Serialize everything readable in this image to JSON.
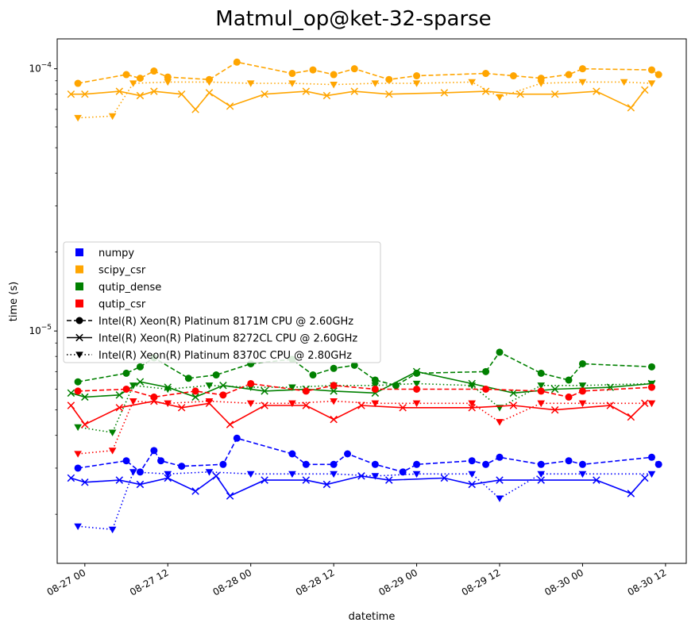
{
  "chart_data": {
    "type": "line",
    "title": "Matmul_op@ket-32-sparse",
    "xlabel": "datetime",
    "ylabel": "time (s)",
    "yscale": "log",
    "ylim": [
      1.3e-06,
      0.00013
    ],
    "xlim": [
      "2022-08-26 20:00",
      "2022-08-30 15:00"
    ],
    "x_ticks": [
      {
        "value": "2022-08-27 00:00",
        "label": "08-27 00"
      },
      {
        "value": "2022-08-27 12:00",
        "label": "08-27 12"
      },
      {
        "value": "2022-08-28 00:00",
        "label": "08-28 00"
      },
      {
        "value": "2022-08-28 12:00",
        "label": "08-28 12"
      },
      {
        "value": "2022-08-29 00:00",
        "label": "08-29 00"
      },
      {
        "value": "2022-08-29 12:00",
        "label": "08-29 12"
      },
      {
        "value": "2022-08-30 00:00",
        "label": "08-30 00"
      },
      {
        "value": "2022-08-30 12:00",
        "label": "08-30 12"
      }
    ],
    "y_ticks": [
      {
        "value": 1e-05,
        "label": "10^-5",
        "base": "10",
        "exp": "−5"
      },
      {
        "value": 0.0001,
        "label": "10^-4",
        "base": "10",
        "exp": "−4"
      }
    ],
    "legend": {
      "placement": "center-left",
      "libraries": [
        {
          "name": "numpy",
          "color": "#0000ff"
        },
        {
          "name": "scipy_csr",
          "color": "#ffa500"
        },
        {
          "name": "qutip_dense",
          "color": "#008000"
        },
        {
          "name": "qutip_csr",
          "color": "#ff0000"
        }
      ],
      "cpus": [
        {
          "name": "Intel(R) Xeon(R) Platinum 8171M CPU @ 2.60GHz",
          "linestyle": "dashed",
          "marker": "circle"
        },
        {
          "name": "Intel(R) Xeon(R) Platinum 8272CL CPU @ 2.60GHz",
          "linestyle": "solid",
          "marker": "x"
        },
        {
          "name": "Intel(R) Xeon(R) Platinum 8370C CPU @ 2.80GHz",
          "linestyle": "dotted",
          "marker": "triangle-down"
        }
      ]
    },
    "series": [
      {
        "library": "scipy_csr",
        "cpu": 0,
        "points": [
          [
            "2022-08-26 23:00",
            8.8e-05
          ],
          [
            "2022-08-27 06:00",
            9.5e-05
          ],
          [
            "2022-08-27 08:00",
            9.2e-05
          ],
          [
            "2022-08-27 10:00",
            9.8e-05
          ],
          [
            "2022-08-27 12:00",
            9.3e-05
          ],
          [
            "2022-08-27 18:00",
            9.1e-05
          ],
          [
            "2022-08-27 22:00",
            0.000106
          ],
          [
            "2022-08-28 06:00",
            9.6e-05
          ],
          [
            "2022-08-28 09:00",
            9.9e-05
          ],
          [
            "2022-08-28 12:00",
            9.5e-05
          ],
          [
            "2022-08-28 15:00",
            0.0001
          ],
          [
            "2022-08-28 20:00",
            9.1e-05
          ],
          [
            "2022-08-29 00:00",
            9.4e-05
          ],
          [
            "2022-08-29 10:00",
            9.6e-05
          ],
          [
            "2022-08-29 14:00",
            9.4e-05
          ],
          [
            "2022-08-29 18:00",
            9.2e-05
          ],
          [
            "2022-08-29 22:00",
            9.5e-05
          ],
          [
            "2022-08-30 00:00",
            0.0001
          ],
          [
            "2022-08-30 10:00",
            9.9e-05
          ],
          [
            "2022-08-30 11:00",
            9.5e-05
          ]
        ]
      },
      {
        "library": "scipy_csr",
        "cpu": 1,
        "points": [
          [
            "2022-08-26 22:00",
            8e-05
          ],
          [
            "2022-08-27 00:00",
            8e-05
          ],
          [
            "2022-08-27 05:00",
            8.2e-05
          ],
          [
            "2022-08-27 08:00",
            7.9e-05
          ],
          [
            "2022-08-27 10:00",
            8.2e-05
          ],
          [
            "2022-08-27 14:00",
            8e-05
          ],
          [
            "2022-08-27 16:00",
            7e-05
          ],
          [
            "2022-08-27 18:00",
            8.1e-05
          ],
          [
            "2022-08-27 21:00",
            7.2e-05
          ],
          [
            "2022-08-28 02:00",
            8e-05
          ],
          [
            "2022-08-28 08:00",
            8.2e-05
          ],
          [
            "2022-08-28 11:00",
            7.9e-05
          ],
          [
            "2022-08-28 15:00",
            8.2e-05
          ],
          [
            "2022-08-28 20:00",
            8e-05
          ],
          [
            "2022-08-29 04:00",
            8.1e-05
          ],
          [
            "2022-08-29 10:00",
            8.2e-05
          ],
          [
            "2022-08-29 15:00",
            8e-05
          ],
          [
            "2022-08-29 20:00",
            8e-05
          ],
          [
            "2022-08-30 02:00",
            8.2e-05
          ],
          [
            "2022-08-30 07:00",
            7.1e-05
          ],
          [
            "2022-08-30 09:00",
            8.3e-05
          ]
        ]
      },
      {
        "library": "scipy_csr",
        "cpu": 2,
        "points": [
          [
            "2022-08-26 23:00",
            6.5e-05
          ],
          [
            "2022-08-27 04:00",
            6.6e-05
          ],
          [
            "2022-08-27 07:00",
            8.8e-05
          ],
          [
            "2022-08-27 12:00",
            8.9e-05
          ],
          [
            "2022-08-27 18:00",
            8.9e-05
          ],
          [
            "2022-08-28 00:00",
            8.8e-05
          ],
          [
            "2022-08-28 06:00",
            8.8e-05
          ],
          [
            "2022-08-28 12:00",
            8.7e-05
          ],
          [
            "2022-08-28 18:00",
            8.8e-05
          ],
          [
            "2022-08-29 00:00",
            8.8e-05
          ],
          [
            "2022-08-29 08:00",
            8.9e-05
          ],
          [
            "2022-08-29 12:00",
            7.8e-05
          ],
          [
            "2022-08-29 18:00",
            8.8e-05
          ],
          [
            "2022-08-30 00:00",
            8.9e-05
          ],
          [
            "2022-08-30 06:00",
            8.9e-05
          ],
          [
            "2022-08-30 10:00",
            8.8e-05
          ]
        ]
      },
      {
        "library": "qutip_dense",
        "cpu": 0,
        "points": [
          [
            "2022-08-26 23:00",
            6.4e-06
          ],
          [
            "2022-08-27 06:00",
            6.9e-06
          ],
          [
            "2022-08-27 08:00",
            7.3e-06
          ],
          [
            "2022-08-27 10:00",
            7.9e-06
          ],
          [
            "2022-08-27 15:00",
            6.6e-06
          ],
          [
            "2022-08-27 19:00",
            6.8e-06
          ],
          [
            "2022-08-28 00:00",
            7.5e-06
          ],
          [
            "2022-08-28 06:00",
            7.8e-06
          ],
          [
            "2022-08-28 09:00",
            6.8e-06
          ],
          [
            "2022-08-28 12:00",
            7.2e-06
          ],
          [
            "2022-08-28 15:00",
            7.4e-06
          ],
          [
            "2022-08-28 18:00",
            6.5e-06
          ],
          [
            "2022-08-28 21:00",
            6.2e-06
          ],
          [
            "2022-08-29 00:00",
            6.9e-06
          ],
          [
            "2022-08-29 10:00",
            7e-06
          ],
          [
            "2022-08-29 12:00",
            8.3e-06
          ],
          [
            "2022-08-29 18:00",
            6.9e-06
          ],
          [
            "2022-08-29 22:00",
            6.5e-06
          ],
          [
            "2022-08-30 00:00",
            7.5e-06
          ],
          [
            "2022-08-30 10:00",
            7.3e-06
          ]
        ]
      },
      {
        "library": "qutip_dense",
        "cpu": 1,
        "points": [
          [
            "2022-08-26 22:00",
            5.8e-06
          ],
          [
            "2022-08-27 00:00",
            5.6e-06
          ],
          [
            "2022-08-27 05:00",
            5.7e-06
          ],
          [
            "2022-08-27 08:00",
            6.4e-06
          ],
          [
            "2022-08-27 12:00",
            6.1e-06
          ],
          [
            "2022-08-27 16:00",
            5.6e-06
          ],
          [
            "2022-08-27 20:00",
            6.2e-06
          ],
          [
            "2022-08-28 02:00",
            5.9e-06
          ],
          [
            "2022-08-28 08:00",
            6e-06
          ],
          [
            "2022-08-28 12:00",
            5.9e-06
          ],
          [
            "2022-08-28 18:00",
            5.8e-06
          ],
          [
            "2022-08-29 00:00",
            7e-06
          ],
          [
            "2022-08-29 08:00",
            6.3e-06
          ],
          [
            "2022-08-29 14:00",
            5.8e-06
          ],
          [
            "2022-08-29 20:00",
            6e-06
          ],
          [
            "2022-08-30 04:00",
            6.1e-06
          ],
          [
            "2022-08-30 10:00",
            6.3e-06
          ]
        ]
      },
      {
        "library": "qutip_dense",
        "cpu": 2,
        "points": [
          [
            "2022-08-26 23:00",
            4.3e-06
          ],
          [
            "2022-08-27 04:00",
            4.1e-06
          ],
          [
            "2022-08-27 07:00",
            6.2e-06
          ],
          [
            "2022-08-27 12:00",
            6e-06
          ],
          [
            "2022-08-27 18:00",
            6.2e-06
          ],
          [
            "2022-08-28 00:00",
            6.1e-06
          ],
          [
            "2022-08-28 06:00",
            6.1e-06
          ],
          [
            "2022-08-28 12:00",
            6.2e-06
          ],
          [
            "2022-08-28 18:00",
            6.2e-06
          ],
          [
            "2022-08-29 00:00",
            6.3e-06
          ],
          [
            "2022-08-29 08:00",
            6.2e-06
          ],
          [
            "2022-08-29 12:00",
            5.1e-06
          ],
          [
            "2022-08-29 18:00",
            6.2e-06
          ],
          [
            "2022-08-30 00:00",
            6.2e-06
          ],
          [
            "2022-08-30 10:00",
            6.3e-06
          ]
        ]
      },
      {
        "library": "qutip_csr",
        "cpu": 0,
        "points": [
          [
            "2022-08-26 23:00",
            5.9e-06
          ],
          [
            "2022-08-27 06:00",
            6e-06
          ],
          [
            "2022-08-27 10:00",
            5.6e-06
          ],
          [
            "2022-08-27 16:00",
            5.9e-06
          ],
          [
            "2022-08-27 20:00",
            5.7e-06
          ],
          [
            "2022-08-28 00:00",
            6.3e-06
          ],
          [
            "2022-08-28 08:00",
            5.9e-06
          ],
          [
            "2022-08-28 12:00",
            6.2e-06
          ],
          [
            "2022-08-28 18:00",
            6e-06
          ],
          [
            "2022-08-29 00:00",
            6e-06
          ],
          [
            "2022-08-29 10:00",
            6e-06
          ],
          [
            "2022-08-29 18:00",
            5.9e-06
          ],
          [
            "2022-08-29 22:00",
            5.6e-06
          ],
          [
            "2022-08-30 00:00",
            5.9e-06
          ],
          [
            "2022-08-30 10:00",
            6.1e-06
          ]
        ]
      },
      {
        "library": "qutip_csr",
        "cpu": 1,
        "points": [
          [
            "2022-08-26 22:00",
            5.2e-06
          ],
          [
            "2022-08-27 00:00",
            4.4e-06
          ],
          [
            "2022-08-27 05:00",
            5.1e-06
          ],
          [
            "2022-08-27 10:00",
            5.4e-06
          ],
          [
            "2022-08-27 14:00",
            5.1e-06
          ],
          [
            "2022-08-27 18:00",
            5.3e-06
          ],
          [
            "2022-08-27 21:00",
            4.4e-06
          ],
          [
            "2022-08-28 02:00",
            5.2e-06
          ],
          [
            "2022-08-28 08:00",
            5.2e-06
          ],
          [
            "2022-08-28 12:00",
            4.6e-06
          ],
          [
            "2022-08-28 16:00",
            5.2e-06
          ],
          [
            "2022-08-28 22:00",
            5.1e-06
          ],
          [
            "2022-08-29 08:00",
            5.1e-06
          ],
          [
            "2022-08-29 14:00",
            5.2e-06
          ],
          [
            "2022-08-29 20:00",
            5e-06
          ],
          [
            "2022-08-30 04:00",
            5.2e-06
          ],
          [
            "2022-08-30 07:00",
            4.7e-06
          ],
          [
            "2022-08-30 09:00",
            5.3e-06
          ]
        ]
      },
      {
        "library": "qutip_csr",
        "cpu": 2,
        "points": [
          [
            "2022-08-26 23:00",
            3.4e-06
          ],
          [
            "2022-08-27 04:00",
            3.5e-06
          ],
          [
            "2022-08-27 07:00",
            5.4e-06
          ],
          [
            "2022-08-27 12:00",
            5.3e-06
          ],
          [
            "2022-08-27 18:00",
            5.4e-06
          ],
          [
            "2022-08-28 00:00",
            5.3e-06
          ],
          [
            "2022-08-28 06:00",
            5.3e-06
          ],
          [
            "2022-08-28 12:00",
            5.4e-06
          ],
          [
            "2022-08-28 18:00",
            5.3e-06
          ],
          [
            "2022-08-29 00:00",
            5.3e-06
          ],
          [
            "2022-08-29 08:00",
            5.3e-06
          ],
          [
            "2022-08-29 12:00",
            4.5e-06
          ],
          [
            "2022-08-29 18:00",
            5.3e-06
          ],
          [
            "2022-08-30 00:00",
            5.3e-06
          ],
          [
            "2022-08-30 10:00",
            5.3e-06
          ]
        ]
      },
      {
        "library": "numpy",
        "cpu": 0,
        "points": [
          [
            "2022-08-26 23:00",
            3e-06
          ],
          [
            "2022-08-27 06:00",
            3.2e-06
          ],
          [
            "2022-08-27 08:00",
            2.9e-06
          ],
          [
            "2022-08-27 10:00",
            3.5e-06
          ],
          [
            "2022-08-27 11:00",
            3.2e-06
          ],
          [
            "2022-08-27 14:00",
            3.05e-06
          ],
          [
            "2022-08-27 20:00",
            3.1e-06
          ],
          [
            "2022-08-27 22:00",
            3.9e-06
          ],
          [
            "2022-08-28 06:00",
            3.4e-06
          ],
          [
            "2022-08-28 08:00",
            3.1e-06
          ],
          [
            "2022-08-28 12:00",
            3.1e-06
          ],
          [
            "2022-08-28 14:00",
            3.4e-06
          ],
          [
            "2022-08-28 18:00",
            3.1e-06
          ],
          [
            "2022-08-28 22:00",
            2.9e-06
          ],
          [
            "2022-08-29 00:00",
            3.1e-06
          ],
          [
            "2022-08-29 08:00",
            3.2e-06
          ],
          [
            "2022-08-29 10:00",
            3.1e-06
          ],
          [
            "2022-08-29 12:00",
            3.3e-06
          ],
          [
            "2022-08-29 18:00",
            3.1e-06
          ],
          [
            "2022-08-29 22:00",
            3.2e-06
          ],
          [
            "2022-08-30 00:00",
            3.1e-06
          ],
          [
            "2022-08-30 10:00",
            3.3e-06
          ],
          [
            "2022-08-30 11:00",
            3.1e-06
          ]
        ]
      },
      {
        "library": "numpy",
        "cpu": 1,
        "points": [
          [
            "2022-08-26 22:00",
            2.75e-06
          ],
          [
            "2022-08-27 00:00",
            2.65e-06
          ],
          [
            "2022-08-27 05:00",
            2.7e-06
          ],
          [
            "2022-08-27 08:00",
            2.6e-06
          ],
          [
            "2022-08-27 12:00",
            2.75e-06
          ],
          [
            "2022-08-27 16:00",
            2.45e-06
          ],
          [
            "2022-08-27 19:00",
            2.8e-06
          ],
          [
            "2022-08-27 21:00",
            2.35e-06
          ],
          [
            "2022-08-28 02:00",
            2.7e-06
          ],
          [
            "2022-08-28 08:00",
            2.7e-06
          ],
          [
            "2022-08-28 11:00",
            2.6e-06
          ],
          [
            "2022-08-28 16:00",
            2.8e-06
          ],
          [
            "2022-08-28 20:00",
            2.7e-06
          ],
          [
            "2022-08-29 04:00",
            2.75e-06
          ],
          [
            "2022-08-29 08:00",
            2.6e-06
          ],
          [
            "2022-08-29 12:00",
            2.7e-06
          ],
          [
            "2022-08-29 18:00",
            2.7e-06
          ],
          [
            "2022-08-30 02:00",
            2.7e-06
          ],
          [
            "2022-08-30 07:00",
            2.4e-06
          ],
          [
            "2022-08-30 09:00",
            2.75e-06
          ]
        ]
      },
      {
        "library": "numpy",
        "cpu": 2,
        "points": [
          [
            "2022-08-26 23:00",
            1.8e-06
          ],
          [
            "2022-08-27 04:00",
            1.75e-06
          ],
          [
            "2022-08-27 07:00",
            2.9e-06
          ],
          [
            "2022-08-27 12:00",
            2.85e-06
          ],
          [
            "2022-08-27 18:00",
            2.9e-06
          ],
          [
            "2022-08-28 00:00",
            2.85e-06
          ],
          [
            "2022-08-28 06:00",
            2.85e-06
          ],
          [
            "2022-08-28 12:00",
            2.85e-06
          ],
          [
            "2022-08-28 18:00",
            2.8e-06
          ],
          [
            "2022-08-29 00:00",
            2.85e-06
          ],
          [
            "2022-08-29 08:00",
            2.85e-06
          ],
          [
            "2022-08-29 12:00",
            2.3e-06
          ],
          [
            "2022-08-29 18:00",
            2.85e-06
          ],
          [
            "2022-08-30 00:00",
            2.85e-06
          ],
          [
            "2022-08-30 10:00",
            2.85e-06
          ]
        ]
      }
    ]
  }
}
